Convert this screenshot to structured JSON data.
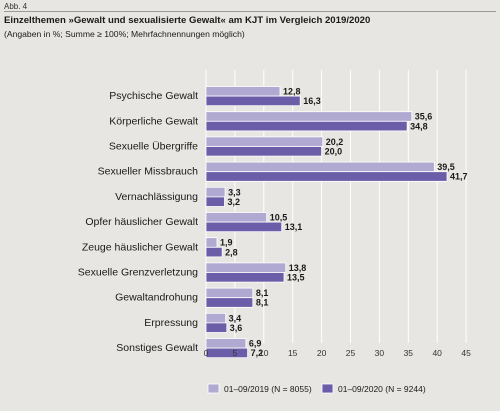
{
  "figure_label": "Abb. 4",
  "chart_data": {
    "type": "bar",
    "orientation": "horizontal",
    "title": "Einzelthemen »Gewalt und sexualisierte Gewalt« am KJT im Vergleich 2019/2020",
    "subtitle": "(Angaben in %; Summe ≥ 100%; Mehrfachnennungen möglich)",
    "categories": [
      "Psychische Gewalt",
      "Körperliche Gewalt",
      "Sexuelle Übergriffe",
      "Sexueller Missbrauch",
      "Vernachlässigung",
      "Opfer häuslicher Gewalt",
      "Zeuge häuslicher Gewalt",
      "Sexuelle Grenzverletzung",
      "Gewaltandrohung",
      "Erpressung",
      "Sonstiges Gewalt"
    ],
    "series": [
      {
        "name": "01–09/2019 (N = 8055)",
        "values": [
          12.8,
          35.6,
          20.2,
          39.5,
          3.3,
          10.5,
          1.9,
          13.8,
          8.1,
          3.4,
          6.9
        ],
        "labels": [
          "12,8",
          "35,6",
          "20,2",
          "39,5",
          "3,3",
          "10,5",
          "1,9",
          "13,8",
          "8,1",
          "3,4",
          "6,9"
        ]
      },
      {
        "name": "01–09/2020 (N = 9244)",
        "values": [
          16.3,
          34.8,
          20.0,
          41.7,
          3.2,
          13.1,
          2.8,
          13.5,
          8.1,
          3.6,
          7.2
        ],
        "labels": [
          "16,3",
          "34,8",
          "20,0",
          "41,7",
          "3,2",
          "13,1",
          "2,8",
          "13,5",
          "8,1",
          "3,6",
          "7,2"
        ]
      }
    ],
    "xlim": [
      0,
      45
    ],
    "xticks": [
      0,
      5,
      10,
      15,
      20,
      25,
      30,
      35,
      40,
      45
    ],
    "grid": true,
    "legend": "bottom",
    "colors": {
      "series_2019": "#b0a9d2",
      "series_2020": "#6b5da8",
      "bar_edge": "#ffffff",
      "grid": "#ffffff",
      "plot_background": "#e8e6e2"
    }
  }
}
